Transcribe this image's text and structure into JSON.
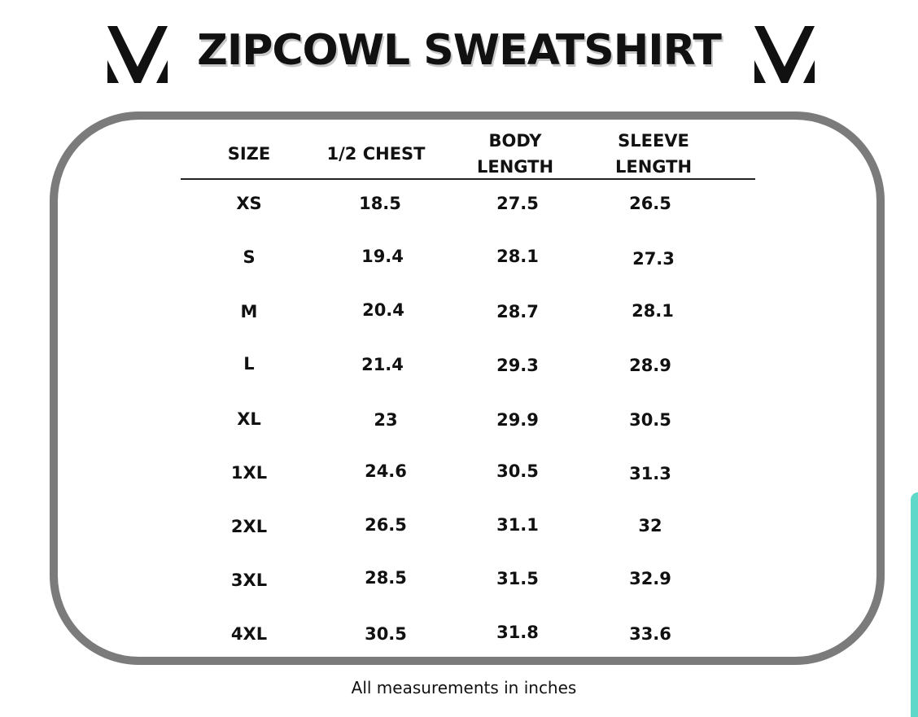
{
  "title": "ZIPCOWL SWEATSHIRT",
  "logo_icon": "v-logo-icon",
  "colors": {
    "frame": "#7b7b7b",
    "text": "#111111",
    "accent_edge": "#5ed8c8"
  },
  "table": {
    "headers": {
      "size": "SIZE",
      "chest": "1/2 CHEST",
      "body_1": "BODY",
      "body_2": "LENGTH",
      "sleeve_1": "SLEEVE",
      "sleeve_2": "LENGTH"
    },
    "rows": [
      {
        "size": "XS",
        "chest": "18.5",
        "body": "27.5",
        "sleeve": "26.5"
      },
      {
        "size": "S",
        "chest": "19.4",
        "body": "28.1",
        "sleeve": "27.3"
      },
      {
        "size": "M",
        "chest": "20.4",
        "body": "28.7",
        "sleeve": "28.1"
      },
      {
        "size": "L",
        "chest": "21.4",
        "body": "29.3",
        "sleeve": "28.9"
      },
      {
        "size": "XL",
        "chest": "23",
        "body": "29.9",
        "sleeve": "30.5"
      },
      {
        "size": "1XL",
        "chest": "24.6",
        "body": "30.5",
        "sleeve": "31.3"
      },
      {
        "size": "2XL",
        "chest": "26.5",
        "body": "31.1",
        "sleeve": "32"
      },
      {
        "size": "3XL",
        "chest": "28.5",
        "body": "31.5",
        "sleeve": "32.9"
      },
      {
        "size": "4XL",
        "chest": "30.5",
        "body": "31.8",
        "sleeve": "33.6"
      }
    ]
  },
  "footnote": "All measurements in inches"
}
